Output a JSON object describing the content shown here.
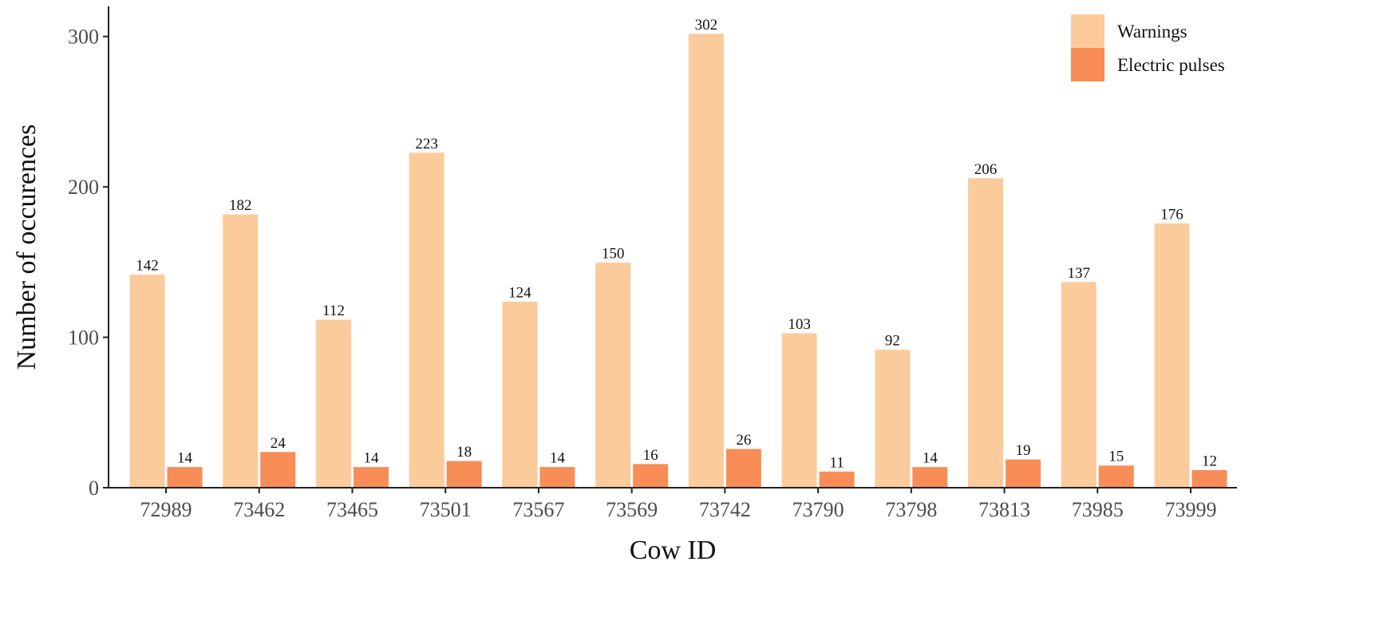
{
  "chart_data": {
    "type": "bar",
    "xlabel": "Cow ID",
    "ylabel": "Number of occurences",
    "ylim": [
      0,
      320
    ],
    "yticks": [
      0,
      100,
      200,
      300
    ],
    "grid": false,
    "legend_position": "top-right",
    "categories": [
      "72989",
      "73462",
      "73465",
      "73501",
      "73567",
      "73569",
      "73742",
      "73790",
      "73798",
      "73813",
      "73985",
      "73999"
    ],
    "series": [
      {
        "name": "Warnings",
        "color": "#fbcb9c",
        "values": [
          142,
          182,
          112,
          223,
          124,
          150,
          302,
          103,
          92,
          206,
          137,
          176
        ]
      },
      {
        "name": "Electric pulses",
        "color": "#f88d57",
        "values": [
          14,
          24,
          14,
          18,
          14,
          16,
          26,
          11,
          14,
          19,
          15,
          12
        ]
      }
    ]
  }
}
